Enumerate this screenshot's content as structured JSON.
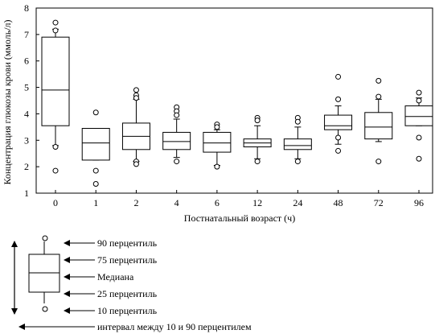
{
  "chart_data": {
    "type": "box",
    "ylabel": "Концентрация  глюкозы крови (ммоль/л)",
    "xlabel": "Постнатальный возраст  (ч)",
    "ylim": [
      1,
      8
    ],
    "yticks": [
      1,
      2,
      3,
      4,
      5,
      6,
      7,
      8
    ],
    "categories": [
      "0",
      "1",
      "2",
      "4",
      "6",
      "12",
      "24",
      "48",
      "72",
      "96"
    ],
    "boxes": [
      {
        "label": "0",
        "p10": 2.8,
        "q1": 3.55,
        "median": 4.9,
        "q3": 6.9,
        "p90": 7.2,
        "outliers": [
          7.45,
          7.15,
          2.75,
          1.85
        ]
      },
      {
        "label": "1",
        "p10": 2.25,
        "q1": 2.25,
        "median": 2.9,
        "q3": 3.45,
        "p90": 3.45,
        "outliers": [
          4.05,
          1.85,
          1.35
        ]
      },
      {
        "label": "2",
        "p10": 2.2,
        "q1": 2.65,
        "median": 3.15,
        "q3": 3.65,
        "p90": 4.55,
        "outliers": [
          4.9,
          4.7,
          4.6,
          2.2,
          2.1
        ]
      },
      {
        "label": "4",
        "p10": 2.35,
        "q1": 2.65,
        "median": 2.95,
        "q3": 3.3,
        "p90": 3.8,
        "outliers": [
          4.25,
          4.1,
          3.95,
          2.2
        ]
      },
      {
        "label": "6",
        "p10": 2.05,
        "q1": 2.55,
        "median": 2.9,
        "q3": 3.3,
        "p90": 3.4,
        "outliers": [
          3.6,
          3.5,
          2.0
        ]
      },
      {
        "label": "12",
        "p10": 2.3,
        "q1": 2.75,
        "median": 2.9,
        "q3": 3.05,
        "p90": 3.55,
        "outliers": [
          3.85,
          3.75,
          2.2
        ]
      },
      {
        "label": "24",
        "p10": 2.3,
        "q1": 2.65,
        "median": 2.8,
        "q3": 3.05,
        "p90": 3.5,
        "outliers": [
          3.85,
          3.7,
          2.2
        ]
      },
      {
        "label": "48",
        "p10": 2.85,
        "q1": 3.4,
        "median": 3.55,
        "q3": 3.95,
        "p90": 4.3,
        "outliers": [
          5.4,
          4.55,
          3.1,
          2.6
        ]
      },
      {
        "label": "72",
        "p10": 2.95,
        "q1": 3.05,
        "median": 3.5,
        "q3": 4.05,
        "p90": 4.55,
        "outliers": [
          5.25,
          4.65,
          2.2
        ]
      },
      {
        "label": "96",
        "p10": 3.55,
        "q1": 3.55,
        "median": 3.9,
        "q3": 4.3,
        "p90": 4.6,
        "outliers": [
          4.8,
          4.5,
          3.1,
          2.3
        ]
      }
    ],
    "legend": {
      "labels": [
        "90 перцентиль",
        "75 перцентиль",
        "Медиана",
        "25 перцентиль",
        "10 перцентиль"
      ],
      "interval_label": "интервал между 10 и 90 перцентилем"
    },
    "grid": false
  }
}
